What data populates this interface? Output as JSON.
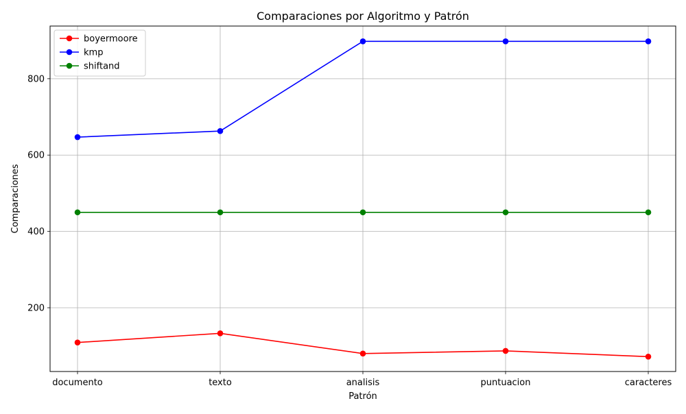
{
  "chart_data": {
    "type": "line",
    "title": "Comparaciones por Algoritmo y Patrón",
    "xlabel": "Patrón",
    "ylabel": "Comparaciones",
    "categories": [
      "documento",
      "texto",
      "analisis",
      "puntuacion",
      "caracteres"
    ],
    "ylim": [
      33,
      938
    ],
    "yticks": [
      200,
      400,
      600,
      800
    ],
    "grid": true,
    "legend_position": "top-left",
    "series": [
      {
        "name": "boyermoore",
        "color": "#ff0000",
        "values": [
          109,
          133,
          80,
          87,
          72
        ]
      },
      {
        "name": "kmp",
        "color": "#0000ff",
        "values": [
          647,
          663,
          898,
          898,
          898
        ]
      },
      {
        "name": "shiftand",
        "color": "#008000",
        "values": [
          450,
          450,
          450,
          450,
          450
        ]
      }
    ]
  }
}
